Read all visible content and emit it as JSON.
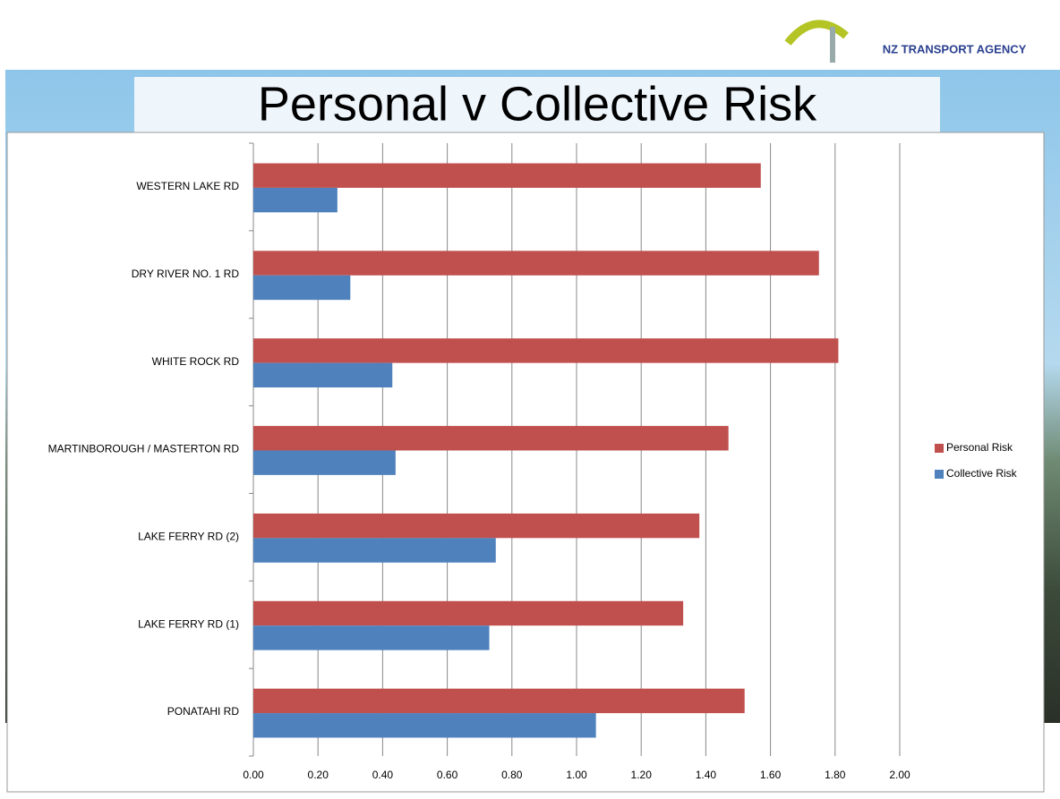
{
  "logo": "NZ TRANSPORT AGENCY",
  "chart_data": {
    "type": "bar",
    "orientation": "horizontal",
    "title": "Personal v Collective Risk",
    "categories": [
      "WESTERN LAKE RD",
      "DRY RIVER NO. 1 RD",
      "WHITE ROCK RD",
      "MARTINBOROUGH / MASTERTON RD",
      "LAKE FERRY RD (2)",
      "LAKE FERRY RD (1)",
      "PONATAHI RD"
    ],
    "series": [
      {
        "name": "Personal Risk",
        "color": "#c0504d",
        "values": [
          1.57,
          1.75,
          1.81,
          1.47,
          1.38,
          1.33,
          1.52
        ]
      },
      {
        "name": "Collective Risk",
        "color": "#4f81bd",
        "values": [
          0.26,
          0.3,
          0.43,
          0.44,
          0.75,
          0.73,
          1.06
        ]
      }
    ],
    "xlim": [
      0,
      2
    ],
    "xticks": [
      {
        "value": 0,
        "label": "0.00"
      },
      {
        "value": 0.2,
        "label": "0.20"
      },
      {
        "value": 0.4,
        "label": "0.40"
      },
      {
        "value": 0.6,
        "label": "0.60"
      },
      {
        "value": 0.8,
        "label": "0.80"
      },
      {
        "value": 1,
        "label": "1.00"
      },
      {
        "value": 1.2,
        "label": "1.20"
      },
      {
        "value": 1.4,
        "label": "1.40"
      },
      {
        "value": 1.6,
        "label": "1.60"
      },
      {
        "value": 1.8,
        "label": "1.80"
      },
      {
        "value": 2,
        "label": "2.00"
      }
    ],
    "grid": true,
    "legend": "right"
  }
}
